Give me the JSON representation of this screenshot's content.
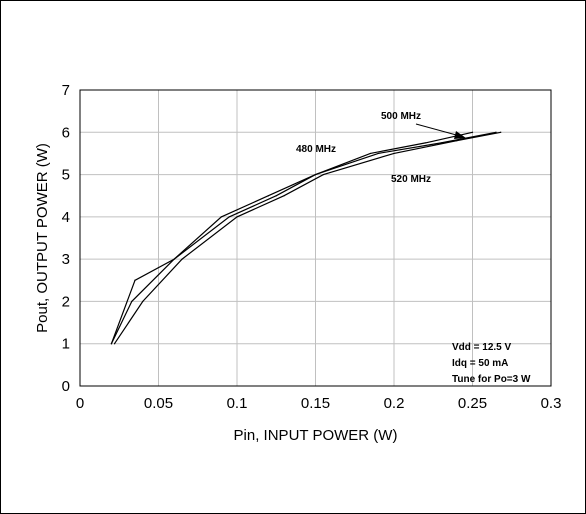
{
  "chart_data": {
    "type": "line",
    "xlabel": "Pin, INPUT POWER (W)",
    "ylabel": "Pout, OUTPUT POWER (W)",
    "xlim": [
      0,
      0.3
    ],
    "ylim": [
      0,
      7
    ],
    "xticks": [
      "0",
      "0.05",
      "0.1",
      "0.15",
      "0.2",
      "0.25",
      "0.3"
    ],
    "yticks": [
      "0",
      "1",
      "2",
      "3",
      "4",
      "5",
      "6",
      "7"
    ],
    "grid": true,
    "series": [
      {
        "name": "480 MHz",
        "x": [
          0.02,
          0.035,
          0.06,
          0.09,
          0.12,
          0.15,
          0.185,
          0.22,
          0.25
        ],
        "y": [
          1.0,
          2.5,
          3.0,
          4.0,
          4.5,
          5.0,
          5.5,
          5.75,
          6.0
        ]
      },
      {
        "name": "500 MHz",
        "x": [
          0.02,
          0.033,
          0.06,
          0.095,
          0.125,
          0.15,
          0.19,
          0.23,
          0.265
        ],
        "y": [
          1.0,
          2.0,
          3.0,
          4.0,
          4.5,
          5.0,
          5.5,
          5.75,
          6.0
        ]
      },
      {
        "name": "520 MHz",
        "x": [
          0.022,
          0.04,
          0.065,
          0.1,
          0.13,
          0.155,
          0.2,
          0.24,
          0.268
        ],
        "y": [
          1.0,
          2.0,
          3.0,
          4.0,
          4.5,
          5.0,
          5.5,
          5.8,
          6.0
        ]
      }
    ],
    "annotations": {
      "label_480": "480 MHz",
      "label_500": "500 MHz",
      "label_520": "520 MHz",
      "conditions": [
        "Vdd = 12.5 V",
        "Idq = 50 mA",
        "Tune for Po=3 W"
      ]
    }
  }
}
